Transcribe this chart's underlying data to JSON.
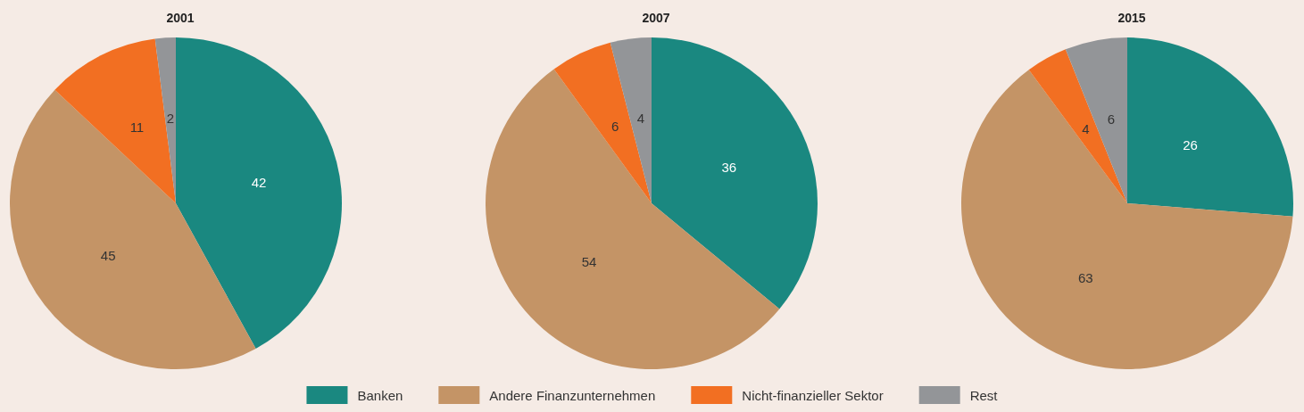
{
  "chart_data": [
    {
      "type": "pie",
      "title": "2001",
      "categories": [
        "Banken",
        "Andere Finanzunternehmen",
        "Nicht-finanzieller Sektor",
        "Rest"
      ],
      "values": [
        42,
        45,
        11,
        2
      ],
      "colors": [
        "#1a8880",
        "#c49466",
        "#f26f22",
        "#939598"
      ],
      "data_labels": true,
      "legend": "bottom"
    },
    {
      "type": "pie",
      "title": "2007",
      "categories": [
        null,
        null,
        null,
        null
      ],
      "values": [
        36,
        54,
        6,
        4
      ],
      "colors": [
        "#1a8880",
        "#c49466",
        "#f26f22",
        "#939598"
      ],
      "data_labels": true
    },
    {
      "type": "pie",
      "title": "2015",
      "categories": [
        null,
        null,
        null,
        null
      ],
      "values": [
        26,
        63,
        4,
        6
      ],
      "colors": [
        "#1a8880",
        "#c49466",
        "#f26f22",
        "#939598"
      ],
      "data_labels": true
    }
  ]
}
